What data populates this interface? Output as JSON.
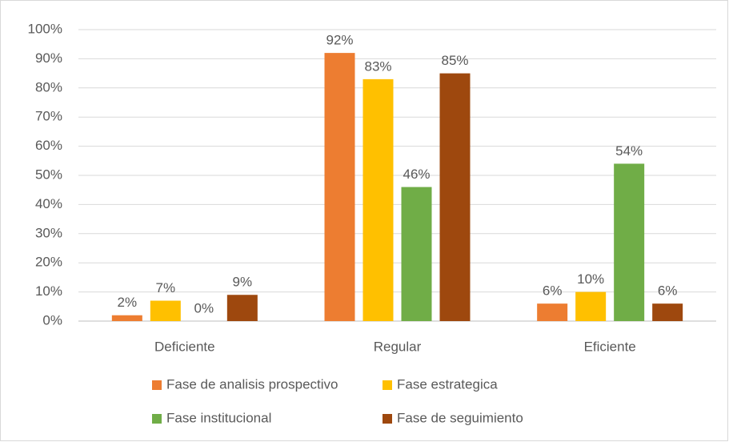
{
  "chart_data": {
    "type": "bar",
    "categories": [
      "Deficiente",
      "Regular",
      "Eficiente"
    ],
    "series": [
      {
        "name": "Fase de analisis prospectivo",
        "color": "#ed7d31",
        "values": [
          2,
          92,
          6
        ],
        "value_labels": [
          "2%",
          "92%",
          "6%"
        ]
      },
      {
        "name": "Fase estrategica",
        "color": "#ffc000",
        "values": [
          7,
          83,
          10
        ],
        "value_labels": [
          "7%",
          "83%",
          "10%"
        ]
      },
      {
        "name": "Fase institucional",
        "color": "#70ad47",
        "values": [
          0,
          46,
          54
        ],
        "value_labels": [
          "0%",
          "46%",
          "54%"
        ]
      },
      {
        "name": "Fase de seguimiento",
        "color": "#9e480e",
        "values": [
          9,
          85,
          6
        ],
        "value_labels": [
          "9%",
          "85%",
          "6%"
        ]
      }
    ],
    "ylim": [
      0,
      100
    ],
    "yticks": [
      {
        "value": 0,
        "label": "0%"
      },
      {
        "value": 10,
        "label": "10%"
      },
      {
        "value": 20,
        "label": "20%"
      },
      {
        "value": 30,
        "label": "30%"
      },
      {
        "value": 40,
        "label": "40%"
      },
      {
        "value": 50,
        "label": "50%"
      },
      {
        "value": 60,
        "label": "60%"
      },
      {
        "value": 70,
        "label": "70%"
      },
      {
        "value": 80,
        "label": "80%"
      },
      {
        "value": 90,
        "label": "90%"
      },
      {
        "value": 100,
        "label": "100%"
      }
    ],
    "grid": true,
    "legend": "bottom"
  }
}
